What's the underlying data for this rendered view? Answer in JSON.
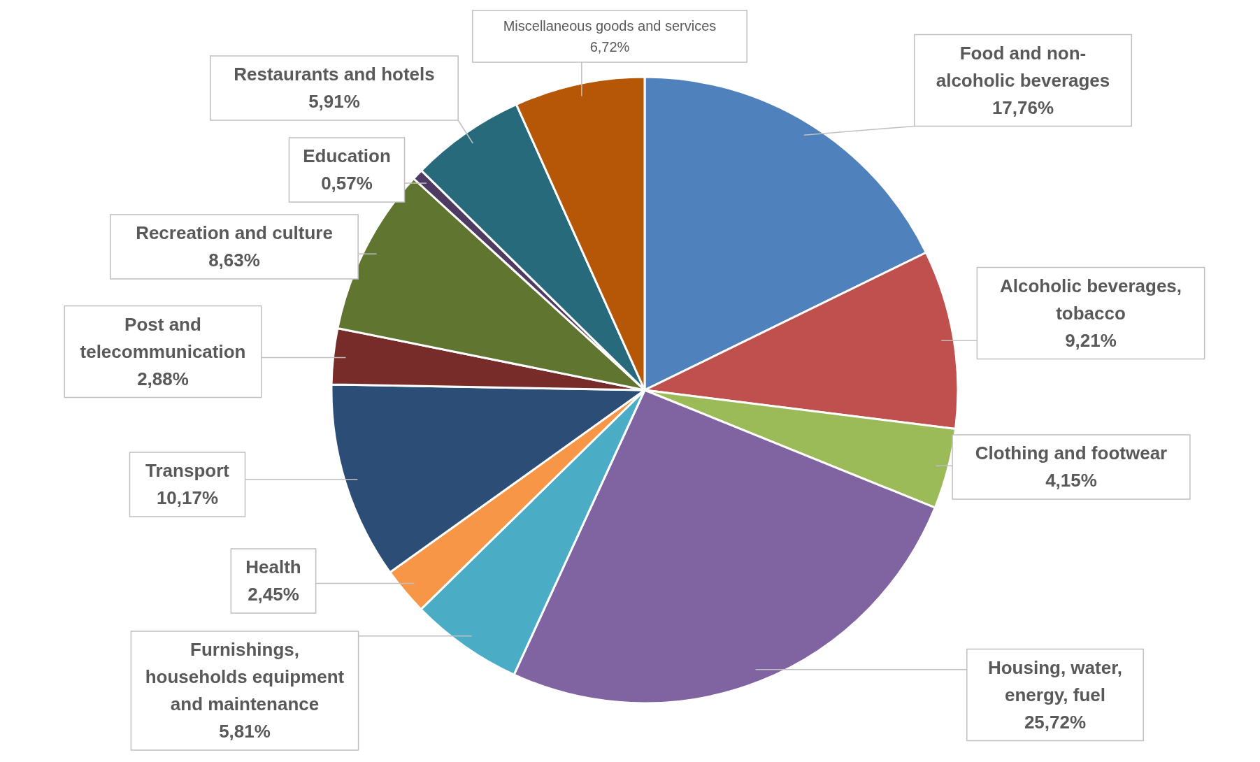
{
  "chart_data": {
    "type": "pie",
    "categories": [
      "Food and non-alcoholic beverages",
      "Alcoholic beverages, tobacco",
      "Clothing and footwear",
      "Housing, water, energy, fuel",
      "Furnishings, households equipment and maintenance",
      "Health",
      "Transport",
      "Post and telecommunication",
      "Recreation and culture",
      "Education",
      "Restaurants and hotels",
      "Miscellaneous goods and services"
    ],
    "values": [
      17.76,
      9.21,
      4.15,
      25.72,
      5.81,
      2.45,
      10.17,
      2.88,
      8.63,
      0.57,
      5.91,
      6.72
    ],
    "value_labels": [
      "17,76%",
      "9,21%",
      "4,15%",
      "25,72%",
      "5,81%",
      "2,45%",
      "10,17%",
      "2,88%",
      "8,63%",
      "0,57%",
      "5,91%",
      "6,72%"
    ],
    "colors": [
      "#4f81bd",
      "#c0504d",
      "#9bbb59",
      "#8064a2",
      "#4bacc6",
      "#f79646",
      "#2c4d75",
      "#772c2a",
      "#5f7530",
      "#4d3b62",
      "#276a7c",
      "#b65708"
    ]
  }
}
